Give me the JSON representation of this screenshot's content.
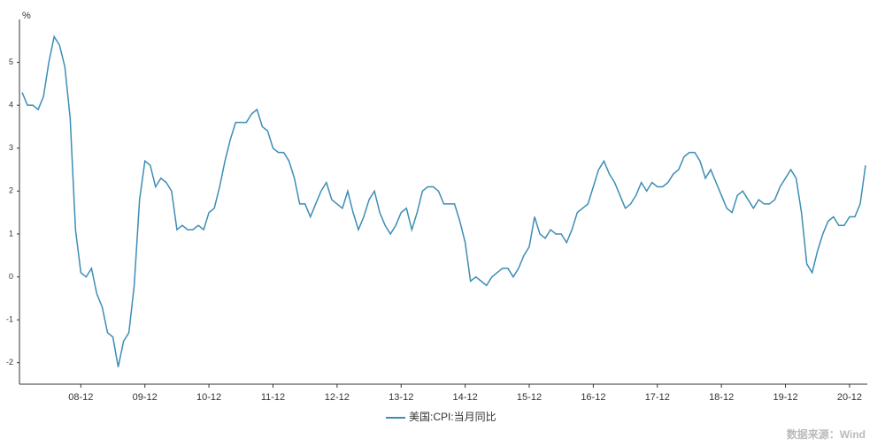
{
  "chart_data": {
    "type": "line",
    "y_label": "%",
    "categories": [
      null,
      null,
      null,
      null,
      null,
      null,
      null,
      null,
      null,
      null,
      null,
      "08-12",
      null,
      null,
      null,
      null,
      null,
      null,
      null,
      null,
      null,
      null,
      null,
      "09-12",
      null,
      null,
      null,
      null,
      null,
      null,
      null,
      null,
      null,
      null,
      null,
      "10-12",
      null,
      null,
      null,
      null,
      null,
      null,
      null,
      null,
      null,
      null,
      null,
      "11-12",
      null,
      null,
      null,
      null,
      null,
      null,
      null,
      null,
      null,
      null,
      null,
      "12-12",
      null,
      null,
      null,
      null,
      null,
      null,
      null,
      null,
      null,
      null,
      null,
      "13-12",
      null,
      null,
      null,
      null,
      null,
      null,
      null,
      null,
      null,
      null,
      null,
      "14-12",
      null,
      null,
      null,
      null,
      null,
      null,
      null,
      null,
      null,
      null,
      null,
      "15-12",
      null,
      null,
      null,
      null,
      null,
      null,
      null,
      null,
      null,
      null,
      null,
      "16-12",
      null,
      null,
      null,
      null,
      null,
      null,
      null,
      null,
      null,
      null,
      null,
      "17-12",
      null,
      null,
      null,
      null,
      null,
      null,
      null,
      null,
      null,
      null,
      null,
      "18-12",
      null,
      null,
      null,
      null,
      null,
      null,
      null,
      null,
      null,
      null,
      null,
      "19-12",
      null,
      null,
      null,
      null,
      null,
      null,
      null,
      null,
      null,
      null,
      null,
      "20-12",
      null,
      null,
      null
    ],
    "series": [
      {
        "name": "美国:CPI:当月同比",
        "color": "#3d8db5",
        "values": [
          4.3,
          4.0,
          4.0,
          3.9,
          4.2,
          5.0,
          5.6,
          5.4,
          4.9,
          3.7,
          1.1,
          0.1,
          0.0,
          0.2,
          -0.4,
          -0.7,
          -1.3,
          -1.4,
          -2.1,
          -1.5,
          -1.3,
          -0.2,
          1.8,
          2.7,
          2.6,
          2.1,
          2.3,
          2.2,
          2.0,
          1.1,
          1.2,
          1.1,
          1.1,
          1.2,
          1.1,
          1.5,
          1.6,
          2.1,
          2.7,
          3.2,
          3.6,
          3.6,
          3.6,
          3.8,
          3.9,
          3.5,
          3.4,
          3.0,
          2.9,
          2.9,
          2.7,
          2.3,
          1.7,
          1.7,
          1.4,
          1.7,
          2.0,
          2.2,
          1.8,
          1.7,
          1.6,
          2.0,
          1.5,
          1.1,
          1.4,
          1.8,
          2.0,
          1.5,
          1.2,
          1.0,
          1.2,
          1.5,
          1.6,
          1.1,
          1.5,
          2.0,
          2.1,
          2.1,
          2.0,
          1.7,
          1.7,
          1.7,
          1.3,
          0.8,
          -0.1,
          0.0,
          -0.1,
          -0.2,
          0.0,
          0.1,
          0.2,
          0.2,
          0.0,
          0.2,
          0.5,
          0.7,
          1.4,
          1.0,
          0.9,
          1.1,
          1.0,
          1.0,
          0.8,
          1.1,
          1.5,
          1.6,
          1.7,
          2.1,
          2.5,
          2.7,
          2.4,
          2.2,
          1.9,
          1.6,
          1.7,
          1.9,
          2.2,
          2.0,
          2.2,
          2.1,
          2.1,
          2.2,
          2.4,
          2.5,
          2.8,
          2.9,
          2.9,
          2.7,
          2.3,
          2.5,
          2.2,
          1.9,
          1.6,
          1.5,
          1.9,
          2.0,
          1.8,
          1.6,
          1.8,
          1.7,
          1.7,
          1.8,
          2.1,
          2.3,
          2.5,
          2.3,
          1.5,
          0.3,
          0.1,
          0.6,
          1.0,
          1.3,
          1.4,
          1.2,
          1.2,
          1.4,
          1.4,
          1.7,
          2.6
        ]
      }
    ],
    "ylim": [
      -2.5,
      6
    ],
    "yticks": [
      -2,
      -1,
      0,
      1,
      2,
      3,
      4,
      5
    ],
    "grid": false,
    "legend": "bottom",
    "source": "数据来源：Wind"
  }
}
